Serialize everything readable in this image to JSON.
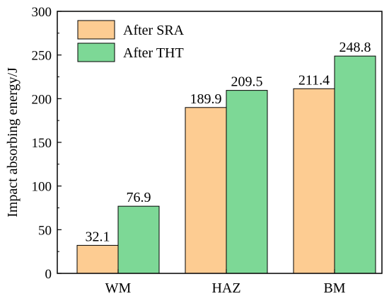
{
  "chart_data": {
    "type": "bar",
    "categories": [
      "WM",
      "HAZ",
      "BM"
    ],
    "series": [
      {
        "name": "After SRA",
        "values": [
          32.1,
          189.9,
          211.4
        ],
        "color": "#FDCC92"
      },
      {
        "name": "After THT",
        "values": [
          76.9,
          209.5,
          248.8
        ],
        "color": "#7DD896"
      }
    ],
    "data_labels": [
      [
        "32.1",
        "189.9",
        "211.4"
      ],
      [
        "76.9",
        "209.5",
        "248.8"
      ]
    ],
    "title": "",
    "xlabel": "",
    "ylabel": "Impact absorbing energy/J",
    "ylim": [
      0,
      300
    ],
    "yticks": [
      0,
      50,
      100,
      150,
      200,
      250,
      300
    ],
    "grid": false,
    "legend_position": "top-left"
  }
}
